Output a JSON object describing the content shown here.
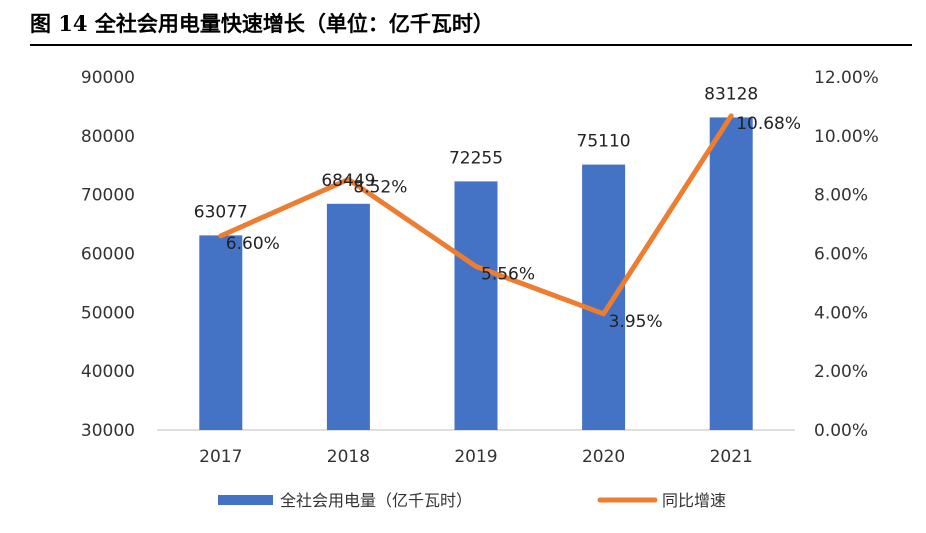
{
  "title": "图 14 全社会用电量快速增长（单位：亿千瓦时）",
  "colors": {
    "bar": "#4472C4",
    "line": "#ED7D31",
    "axis": "#BFBFBF"
  },
  "chart_data": {
    "type": "bar",
    "categories": [
      "2017",
      "2018",
      "2019",
      "2020",
      "2021"
    ],
    "series": [
      {
        "name": "全社会用电量（亿千瓦时）",
        "type": "bar",
        "axis": "left",
        "values": [
          63077,
          68449,
          72255,
          75110,
          83128
        ],
        "labels": [
          "63077",
          "68449",
          "72255",
          "75110",
          "83128"
        ]
      },
      {
        "name": "同比增速",
        "type": "line",
        "axis": "right",
        "values": [
          6.6,
          8.52,
          5.56,
          3.95,
          10.68
        ],
        "labels": [
          "6.60%",
          "8.52%",
          "5.56%",
          "3.95%",
          "10.68%"
        ]
      }
    ],
    "y_left": {
      "lim": [
        30000,
        90000
      ],
      "ticks": [
        "30000",
        "40000",
        "50000",
        "60000",
        "70000",
        "80000",
        "90000"
      ]
    },
    "y_right": {
      "lim": [
        0,
        12
      ],
      "ticks": [
        "0.00%",
        "2.00%",
        "4.00%",
        "6.00%",
        "8.00%",
        "10.00%",
        "12.00%"
      ]
    },
    "grid": false,
    "legend_position": "bottom"
  }
}
